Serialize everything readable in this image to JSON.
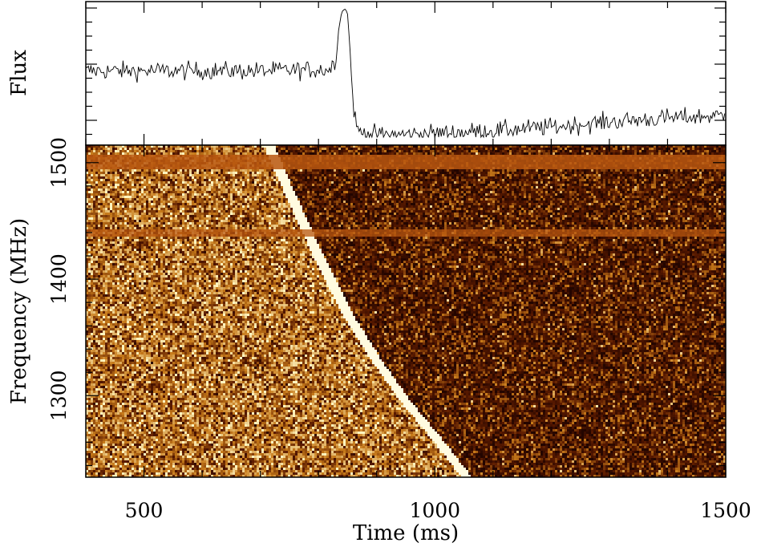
{
  "chart_data": [
    {
      "type": "line",
      "panel": "flux-profile",
      "ylabel": "Flux",
      "xlim": [
        400,
        1500
      ],
      "series": [
        {
          "x": [
            400,
            500,
            600,
            700,
            800,
            820,
            830,
            835,
            840,
            845,
            850,
            855,
            860,
            865,
            870,
            880,
            900,
            950,
            1000,
            1100,
            1200,
            1300,
            1400,
            1500
          ],
          "values": [
            0.52,
            0.52,
            0.52,
            0.52,
            0.53,
            0.53,
            0.62,
            0.85,
            1.0,
            1.0,
            0.98,
            0.6,
            0.25,
            0.08,
            0.05,
            0.03,
            0.02,
            0.02,
            0.03,
            0.05,
            0.08,
            0.12,
            0.15,
            0.17
          ]
        }
      ]
    },
    {
      "type": "heatmap",
      "panel": "dynamic-spectrum",
      "xlabel": "Time (ms)",
      "ylabel": "Frequency (MHz)",
      "xlim": [
        400,
        1500
      ],
      "ylim": [
        1230,
        1515
      ],
      "xticks": [
        "500",
        "1000",
        "1500"
      ],
      "yticks": [
        "1300",
        "1400",
        "1500"
      ],
      "sweep": {
        "x": [
          715,
          745,
          800,
          850,
          900,
          950,
          1000,
          1055
        ],
        "y": [
          1515,
          1480,
          1420,
          1370,
          1330,
          1295,
          1265,
          1230
        ]
      },
      "rfi_bands_mhz": [
        1500,
        1440
      ],
      "colors": {
        "background_low": "#5a1a00",
        "background_mid": "#c77a1a",
        "background_high": "#fff5c0",
        "rfi_band": "#b8560f",
        "pulse": "#fffbe0"
      }
    }
  ]
}
